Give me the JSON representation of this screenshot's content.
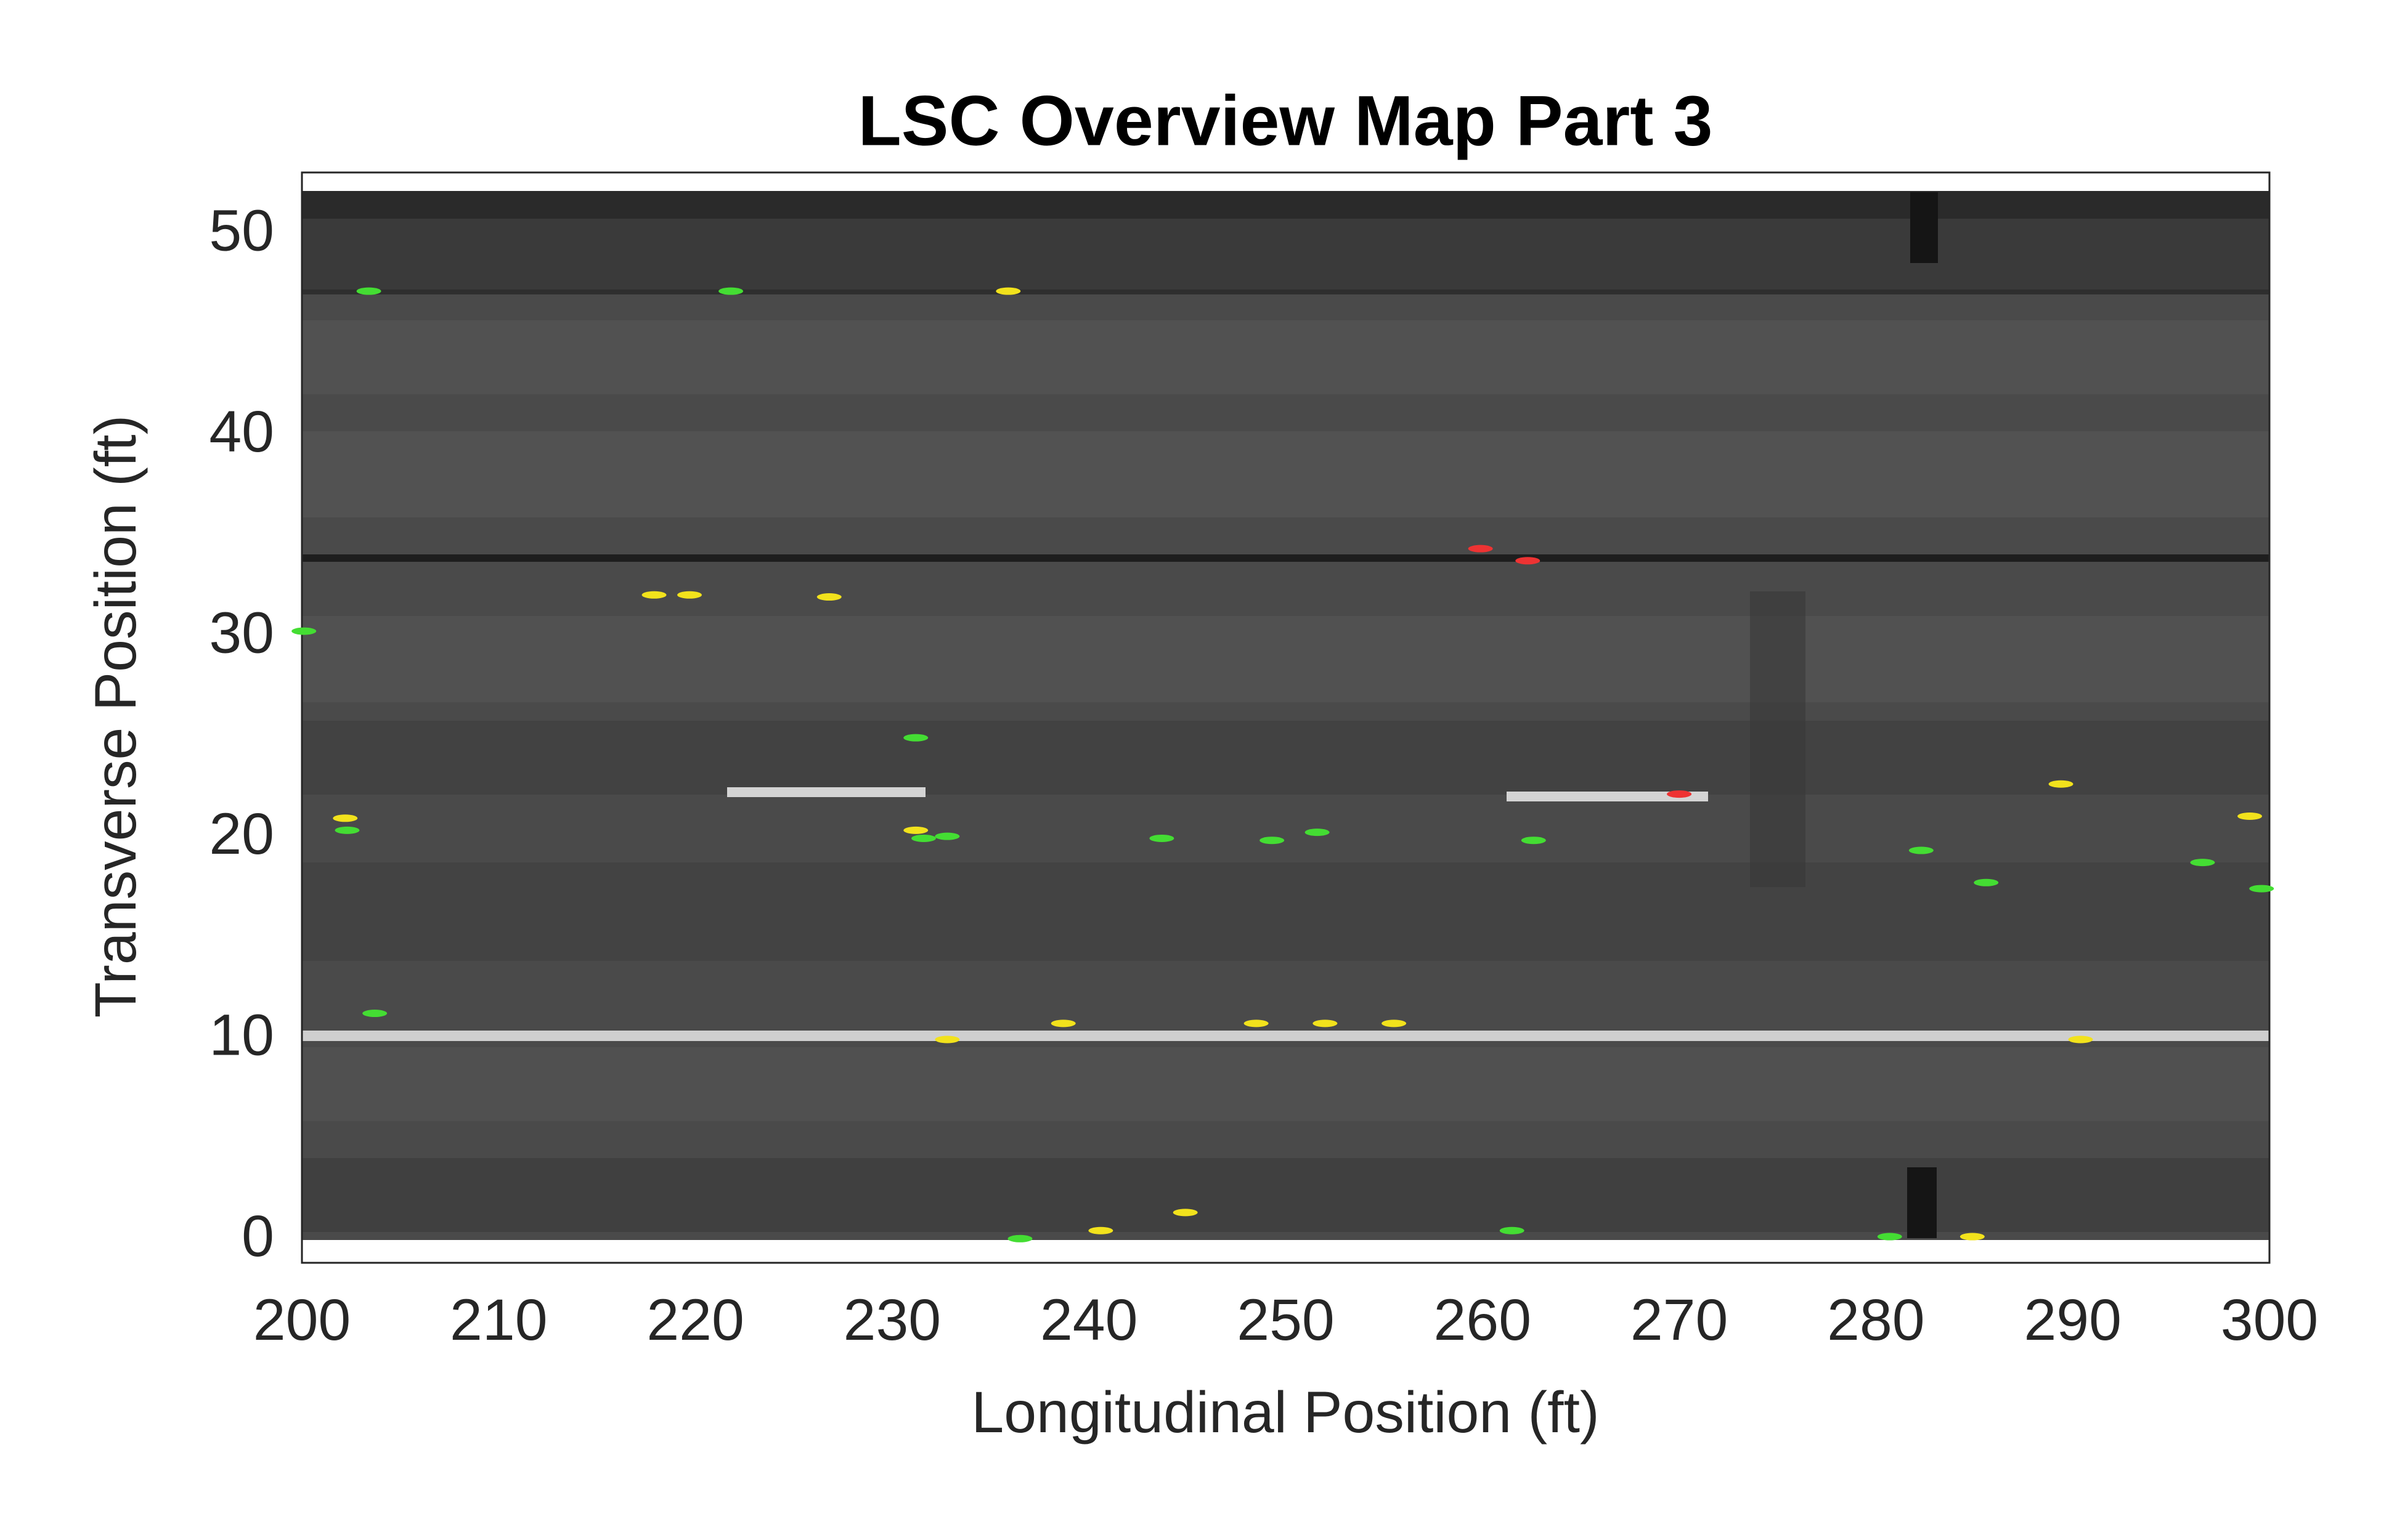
{
  "chart_data": {
    "type": "scatter",
    "title": "LSC Overview Map Part 3",
    "xlabel": "Longitudinal Position (ft)",
    "ylabel": "Transverse Position (ft)",
    "xlim": [
      200,
      300
    ],
    "ylim": [
      -1.1,
      53.1
    ],
    "xticks": [
      200,
      210,
      220,
      230,
      240,
      250,
      260,
      270,
      280,
      290,
      300
    ],
    "yticks": [
      0,
      10,
      20,
      30,
      40,
      50
    ],
    "series": [
      {
        "color": "#44dd33",
        "x": [
          203.4,
          221.8,
          200.1,
          231.2,
          202.3,
          231.6,
          232.8,
          243.7,
          249.3,
          251.6,
          262.6,
          282.3,
          285.6,
          296.6,
          299.6,
          203.7,
          261.5,
          236.5,
          280.7
        ],
        "values": [
          47.2,
          47.2,
          30.3,
          25.0,
          20.4,
          20.0,
          20.1,
          20.0,
          19.9,
          20.3,
          19.9,
          19.4,
          17.8,
          18.8,
          17.5,
          11.3,
          0.5,
          0.1,
          0.2
        ]
      },
      {
        "color": "#f2e21c",
        "x": [
          235.9,
          217.9,
          219.7,
          226.8,
          202.2,
          231.2,
          238.7,
          248.5,
          252.0,
          255.5,
          232.8,
          289.4,
          299.0,
          290.4,
          240.6,
          244.9,
          284.9
        ],
        "values": [
          47.2,
          32.1,
          32.1,
          32.0,
          21.0,
          20.4,
          10.8,
          10.8,
          10.8,
          10.8,
          10.0,
          22.7,
          21.1,
          10.0,
          0.5,
          1.4,
          0.2
        ]
      },
      {
        "color": "#ee3333",
        "x": [
          259.9,
          262.3,
          270.0
        ],
        "values": [
          34.4,
          33.8,
          22.2
        ]
      }
    ]
  }
}
